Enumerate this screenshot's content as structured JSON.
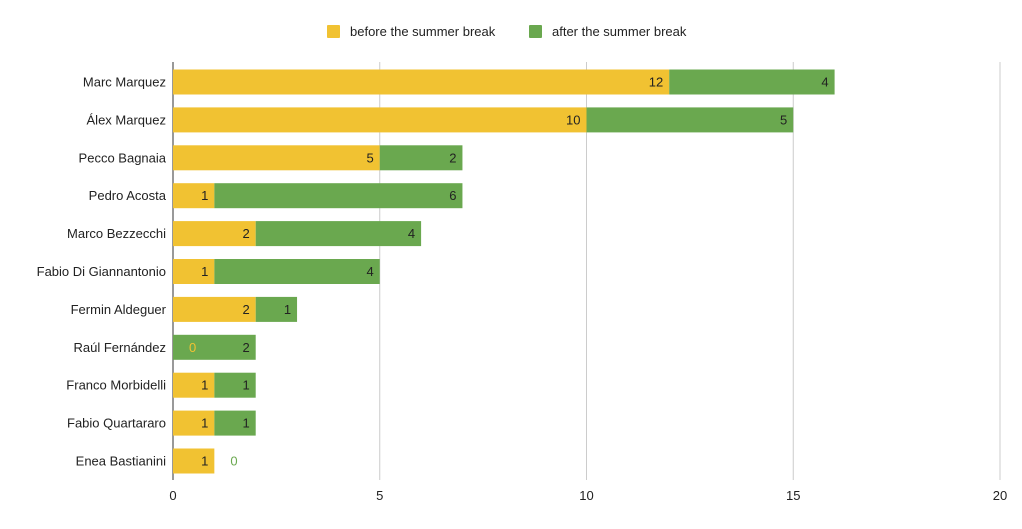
{
  "chart_data": {
    "type": "bar",
    "orientation": "horizontal",
    "stacked": true,
    "categories": [
      "Marc Marquez",
      "Álex Marquez",
      "Pecco Bagnaia",
      "Pedro Acosta",
      "Marco Bezzecchi",
      "Fabio Di Giannantonio",
      "Fermin Aldeguer",
      "Raúl Fernández",
      "Franco Morbidelli",
      "Fabio Quartararo",
      "Enea Bastianini"
    ],
    "series": [
      {
        "name": "before the summer break",
        "color": "#f1c232",
        "values": [
          12,
          10,
          5,
          1,
          2,
          1,
          2,
          0,
          1,
          1,
          1
        ]
      },
      {
        "name": "after the summer break",
        "color": "#6aa84f",
        "values": [
          4,
          5,
          2,
          6,
          4,
          4,
          1,
          2,
          1,
          1,
          0
        ]
      }
    ],
    "xlim": [
      0,
      20
    ],
    "xticks": [
      "0",
      "5",
      "10",
      "15",
      "20"
    ],
    "xticks_values": [
      0,
      5,
      10,
      15,
      20
    ],
    "grid": "vertical",
    "legend": "top-center",
    "data_labels": true,
    "title": "",
    "xlabel": "",
    "ylabel": ""
  }
}
